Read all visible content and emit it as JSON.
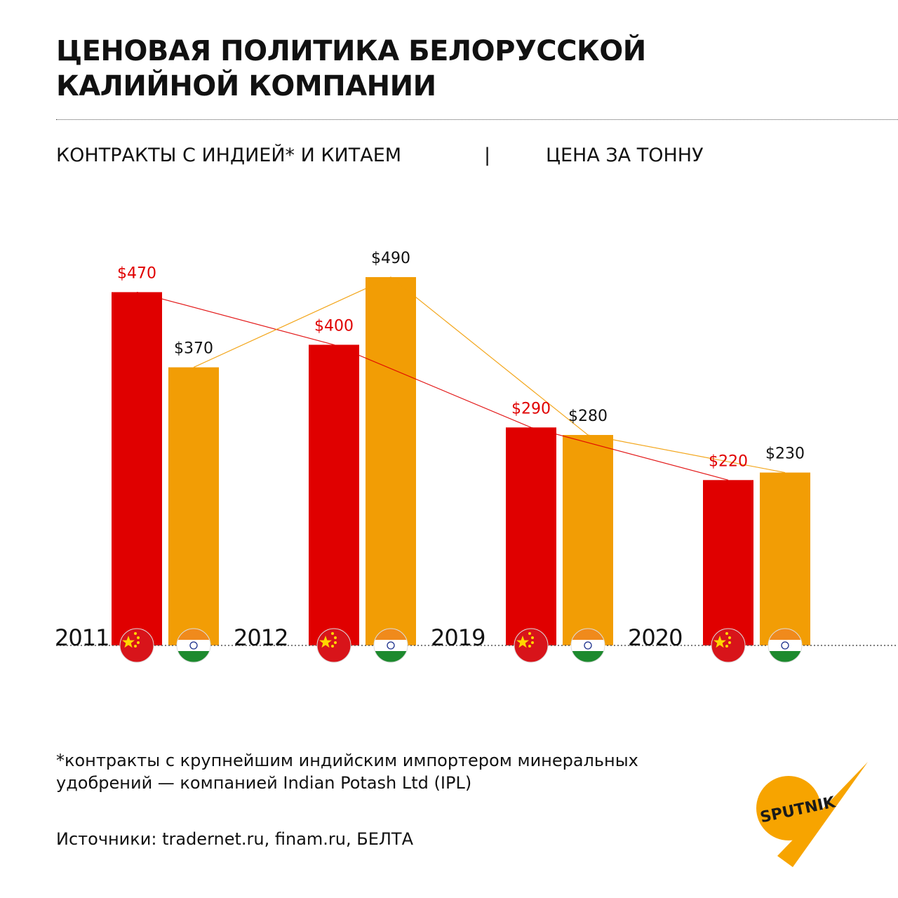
{
  "header": {
    "title": "ЦЕНОВАЯ ПОЛИТИКА БЕЛОРУССКОЙ КАЛИЙНОЙ КОМПАНИИ",
    "subtitle_left": "КОНТРАКТЫ С ИНДИЕЙ* И КИТАЕМ",
    "subtitle_sep": "|",
    "subtitle_right": "ЦЕНА ЗА ТОННУ"
  },
  "chart_data": {
    "type": "bar",
    "categories": [
      "2011",
      "2012",
      "2019",
      "2020"
    ],
    "series": [
      {
        "key": "china",
        "flag": "china-flag-icon",
        "color": "#e00000",
        "label_color": "#e00000",
        "values": [
          470,
          400,
          290,
          220
        ]
      },
      {
        "key": "india",
        "flag": "india-flag-icon",
        "color": "#f29d05",
        "label_color": "#111111",
        "values": [
          370,
          490,
          280,
          230
        ]
      }
    ],
    "value_prefix": "$",
    "ylim": [
      0,
      500
    ],
    "grid": false,
    "connecting_lines": true
  },
  "footer": {
    "footnote": "*контракты с крупнейшим индийским импортером минеральных\nудобрений —  компанией Indian Potash Ltd (IPL)",
    "sources": "Источники: tradernet.ru, finam.ru, БЕЛТА",
    "logo_text": "SPUTNIK"
  },
  "colors": {
    "china": "#e00000",
    "india": "#f29d05",
    "logo": "#f7a400"
  }
}
